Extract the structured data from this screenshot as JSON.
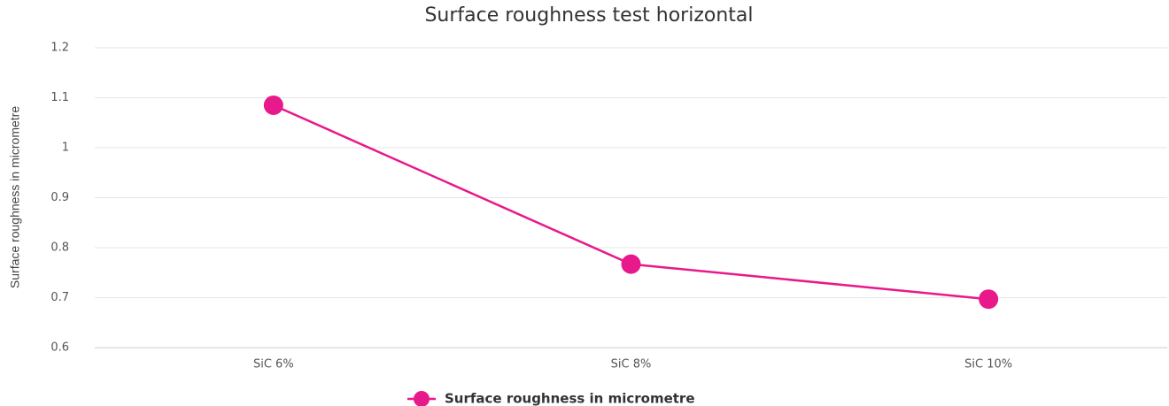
{
  "chart_data": {
    "type": "line",
    "title": "Surface roughness test horizontal",
    "y_label": "Surface roughness in micrometre",
    "categories": [
      "SiC 6%",
      "SiC 8%",
      "SiC 10%"
    ],
    "series": [
      {
        "name": "Surface roughness in micrometre",
        "color": "#e8198b",
        "values": [
          1.085,
          0.767,
          0.697
        ]
      }
    ],
    "ylim": [
      0.6,
      1.2
    ],
    "yticks": [
      0.6,
      0.7,
      0.8,
      0.9,
      1,
      1.1,
      1.2
    ],
    "grid": true,
    "legend": "bottom"
  }
}
